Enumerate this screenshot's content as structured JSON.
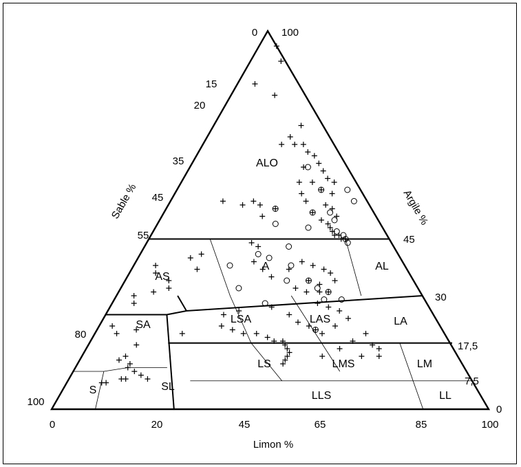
{
  "chart_data": {
    "type": "scatter",
    "subtype": "ternary-soil-texture-triangle",
    "axes": {
      "bottom": {
        "label": "Limon %",
        "ticks": [
          "0",
          "20",
          "45",
          "65",
          "85",
          "100"
        ]
      },
      "left": {
        "label": "Sable %",
        "ticks": [
          "0",
          "15",
          "20",
          "35",
          "45",
          "55",
          "80",
          "100"
        ]
      },
      "right": {
        "label": "Argile %",
        "ticks": [
          "100",
          "45",
          "30",
          "17,5",
          "7,5",
          "0"
        ]
      }
    },
    "zones": [
      "ALO",
      "AS",
      "A",
      "AL",
      "SA",
      "LSA",
      "LAS",
      "LA",
      "S",
      "SL",
      "LS",
      "LMS",
      "LM",
      "LLS",
      "LL"
    ],
    "series": [
      {
        "marker": "+",
        "points": [
          [
            4,
            96
          ],
          [
            7,
            92
          ],
          [
            10,
            83
          ],
          [
            4,
            86
          ],
          [
            20,
            75
          ],
          [
            19,
            72
          ],
          [
            23,
            70
          ],
          [
            18,
            70
          ],
          [
            21,
            70
          ],
          [
            25,
            68
          ],
          [
            27,
            67
          ],
          [
            29,
            65
          ],
          [
            31,
            63
          ],
          [
            33,
            61
          ],
          [
            35,
            60
          ],
          [
            36,
            57
          ],
          [
            33,
            58
          ],
          [
            30,
            60
          ],
          [
            26,
            64
          ],
          [
            27,
            60
          ],
          [
            29,
            57
          ],
          [
            31,
            55
          ],
          [
            34,
            52
          ],
          [
            37,
            50
          ],
          [
            39,
            49
          ],
          [
            40,
            48
          ],
          [
            41,
            47
          ],
          [
            42,
            46
          ],
          [
            43,
            46
          ],
          [
            44,
            45
          ],
          [
            45,
            45
          ],
          [
            38,
            53
          ],
          [
            40,
            51
          ],
          [
            36,
            54
          ],
          [
            12,
            55
          ],
          [
            17,
            54
          ],
          [
            19,
            55
          ],
          [
            21,
            54
          ],
          [
            25,
            53
          ],
          [
            23,
            51
          ],
          [
            24,
            44
          ],
          [
            26,
            43
          ],
          [
            27,
            39
          ],
          [
            30,
            37
          ],
          [
            33,
            35
          ],
          [
            36,
            37
          ],
          [
            38,
            39
          ],
          [
            41,
            38
          ],
          [
            44,
            37
          ],
          [
            46,
            36
          ],
          [
            48,
            34
          ],
          [
            45,
            33
          ],
          [
            42,
            34
          ],
          [
            40,
            32
          ],
          [
            43,
            31
          ],
          [
            46,
            31
          ],
          [
            48,
            31
          ],
          [
            12,
            40
          ],
          [
            14,
            41
          ],
          [
            15,
            37
          ],
          [
            5,
            38
          ],
          [
            6,
            36
          ],
          [
            10,
            34
          ],
          [
            11,
            32
          ],
          [
            8,
            31
          ],
          [
            4,
            30
          ],
          [
            5,
            28
          ],
          [
            27,
            25
          ],
          [
            30,
            26
          ],
          [
            37,
            27
          ],
          [
            42,
            25
          ],
          [
            45,
            23
          ],
          [
            48,
            22
          ],
          [
            50,
            21
          ],
          [
            52,
            20
          ],
          [
            54,
            22
          ],
          [
            56,
            24
          ],
          [
            53,
            26
          ],
          [
            50,
            27
          ],
          [
            47,
            28
          ],
          [
            20,
            20
          ],
          [
            28,
            22
          ],
          [
            31,
            21
          ],
          [
            34,
            20
          ],
          [
            37,
            20
          ],
          [
            40,
            19
          ],
          [
            42,
            18
          ],
          [
            44,
            18
          ],
          [
            45,
            17
          ],
          [
            46,
            16
          ],
          [
            47,
            15
          ],
          [
            47,
            14
          ],
          [
            47,
            13
          ],
          [
            47,
            12
          ],
          [
            55,
            14
          ],
          [
            58,
            16
          ],
          [
            60,
            18
          ],
          [
            62,
            20
          ],
          [
            65,
            17
          ],
          [
            67,
            16
          ],
          [
            64,
            14
          ],
          [
            68,
            14
          ],
          [
            3,
            22
          ],
          [
            5,
            20
          ],
          [
            9,
            21
          ],
          [
            11,
            17
          ],
          [
            10,
            14
          ],
          [
            9,
            13
          ],
          [
            12,
            12
          ],
          [
            14,
            10
          ],
          [
            16,
            9
          ],
          [
            12,
            8
          ],
          [
            13,
            8
          ],
          [
            8,
            7
          ],
          [
            9,
            7
          ],
          [
            12,
            11
          ],
          [
            18,
            8
          ]
        ]
      },
      {
        "marker": "o",
        "points": [
          [
            27,
            64
          ],
          [
            39,
            58
          ],
          [
            42,
            55
          ],
          [
            33,
            58
          ],
          [
            34,
            52
          ],
          [
            38,
            52
          ],
          [
            40,
            50
          ],
          [
            42,
            47
          ],
          [
            44,
            46
          ],
          [
            45,
            45
          ],
          [
            46,
            44
          ],
          [
            35,
            48
          ],
          [
            25,
            53
          ],
          [
            27,
            49
          ],
          [
            27,
            41
          ],
          [
            33,
            43
          ],
          [
            30,
            40
          ],
          [
            36,
            38
          ],
          [
            37,
            34
          ],
          [
            42,
            34
          ],
          [
            45,
            32
          ],
          [
            48,
            31
          ],
          [
            52,
            29
          ],
          [
            48,
            29
          ],
          [
            22,
            38
          ],
          [
            27,
            32
          ],
          [
            35,
            28
          ],
          [
            50,
            21
          ]
        ]
      }
    ]
  }
}
